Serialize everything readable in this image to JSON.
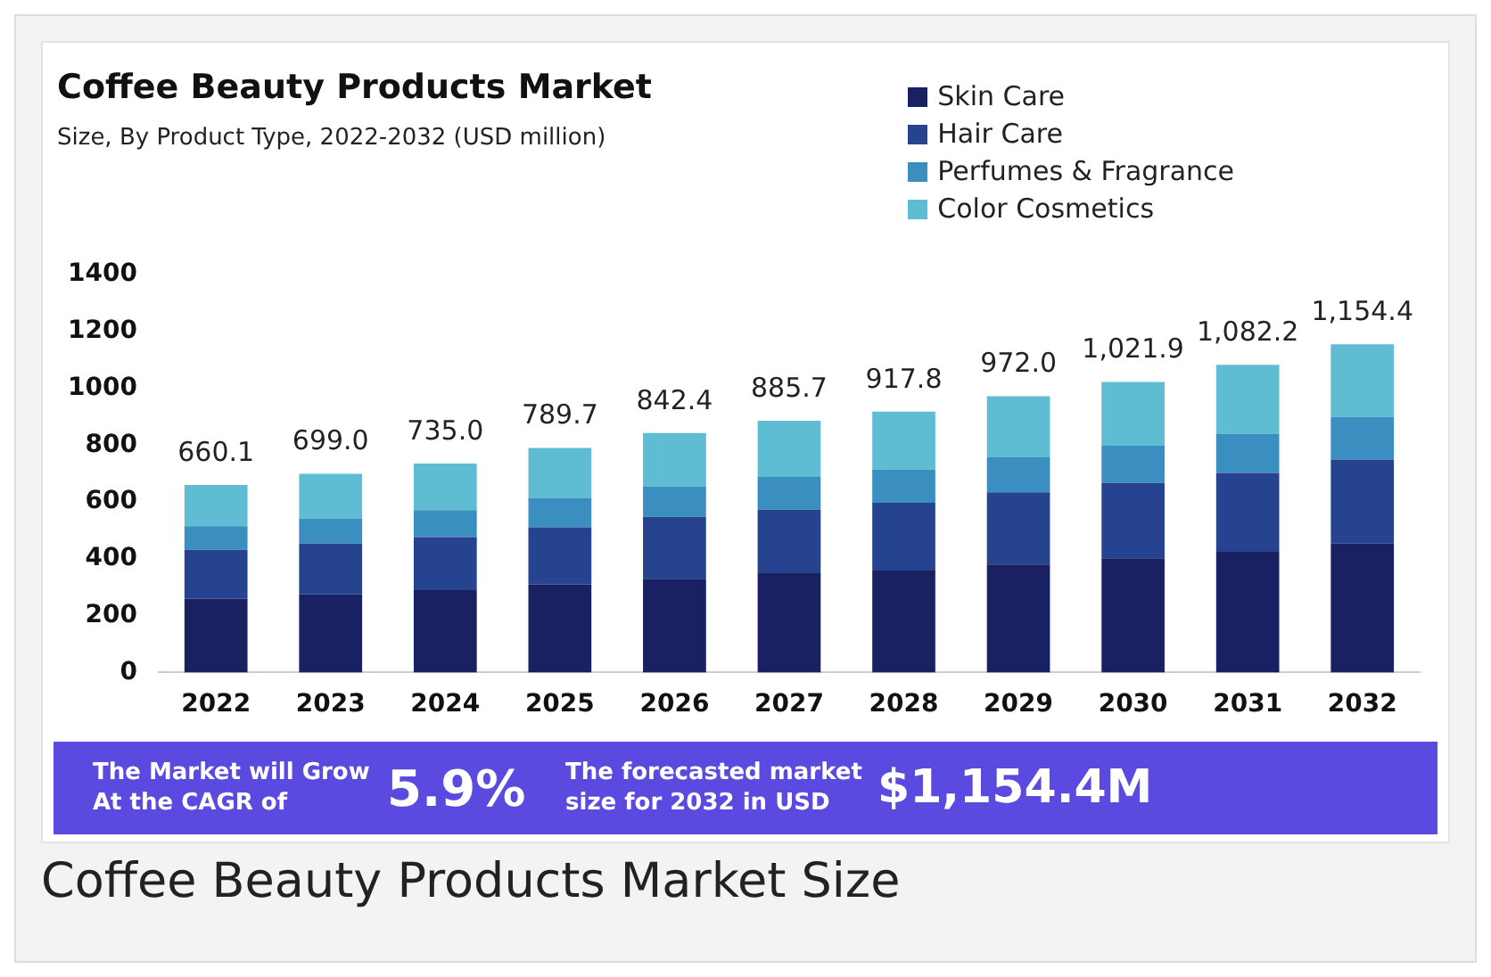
{
  "chart_data": {
    "type": "bar",
    "title": "Coffee Beauty Products Market",
    "subtitle": "Size, By Product Type, 2022-2032 (USD million)",
    "categories": [
      "2022",
      "2023",
      "2024",
      "2025",
      "2026",
      "2027",
      "2028",
      "2029",
      "2030",
      "2031",
      "2032"
    ],
    "stacked": true,
    "series": [
      {
        "name": "Skin Care",
        "color": "#1a2163",
        "values": [
          260,
          275,
          290,
          310,
          330,
          349,
          359,
          380,
          402,
          425,
          454
        ]
      },
      {
        "name": "Hair Care",
        "color": "#26438f",
        "values": [
          172,
          179,
          186,
          201,
          218,
          224,
          238,
          254,
          265,
          277,
          295
        ]
      },
      {
        "name": "Perfumes & Fragrance",
        "color": "#3a8fc0",
        "values": [
          83,
          88,
          95,
          103,
          107,
          115,
          117,
          123,
          131,
          138,
          150
        ]
      },
      {
        "name": "Color Cosmetics",
        "color": "#5fbdd3",
        "values": [
          145.1,
          157,
          164,
          175.7,
          187.4,
          197.7,
          203.8,
          215,
          223.9,
          242.2,
          255.4
        ]
      }
    ],
    "totals": [
      "660.1",
      "699.0",
      "735.0",
      "789.7",
      "842.4",
      "885.7",
      "917.8",
      "972.0",
      "1,021.9",
      "1,082.2",
      "1,154.4"
    ],
    "ylim": [
      0,
      1400
    ],
    "yticks": [
      0,
      200,
      400,
      600,
      800,
      1000,
      1200,
      1400
    ],
    "grid": false,
    "legend": "top right",
    "annotations": [
      "The Market will Grow At the CAGR of",
      "5.9%",
      "The forecasted market size for 2032 in USD",
      "$1,154.4M",
      "Coffee Beauty Products Market Size"
    ]
  }
}
